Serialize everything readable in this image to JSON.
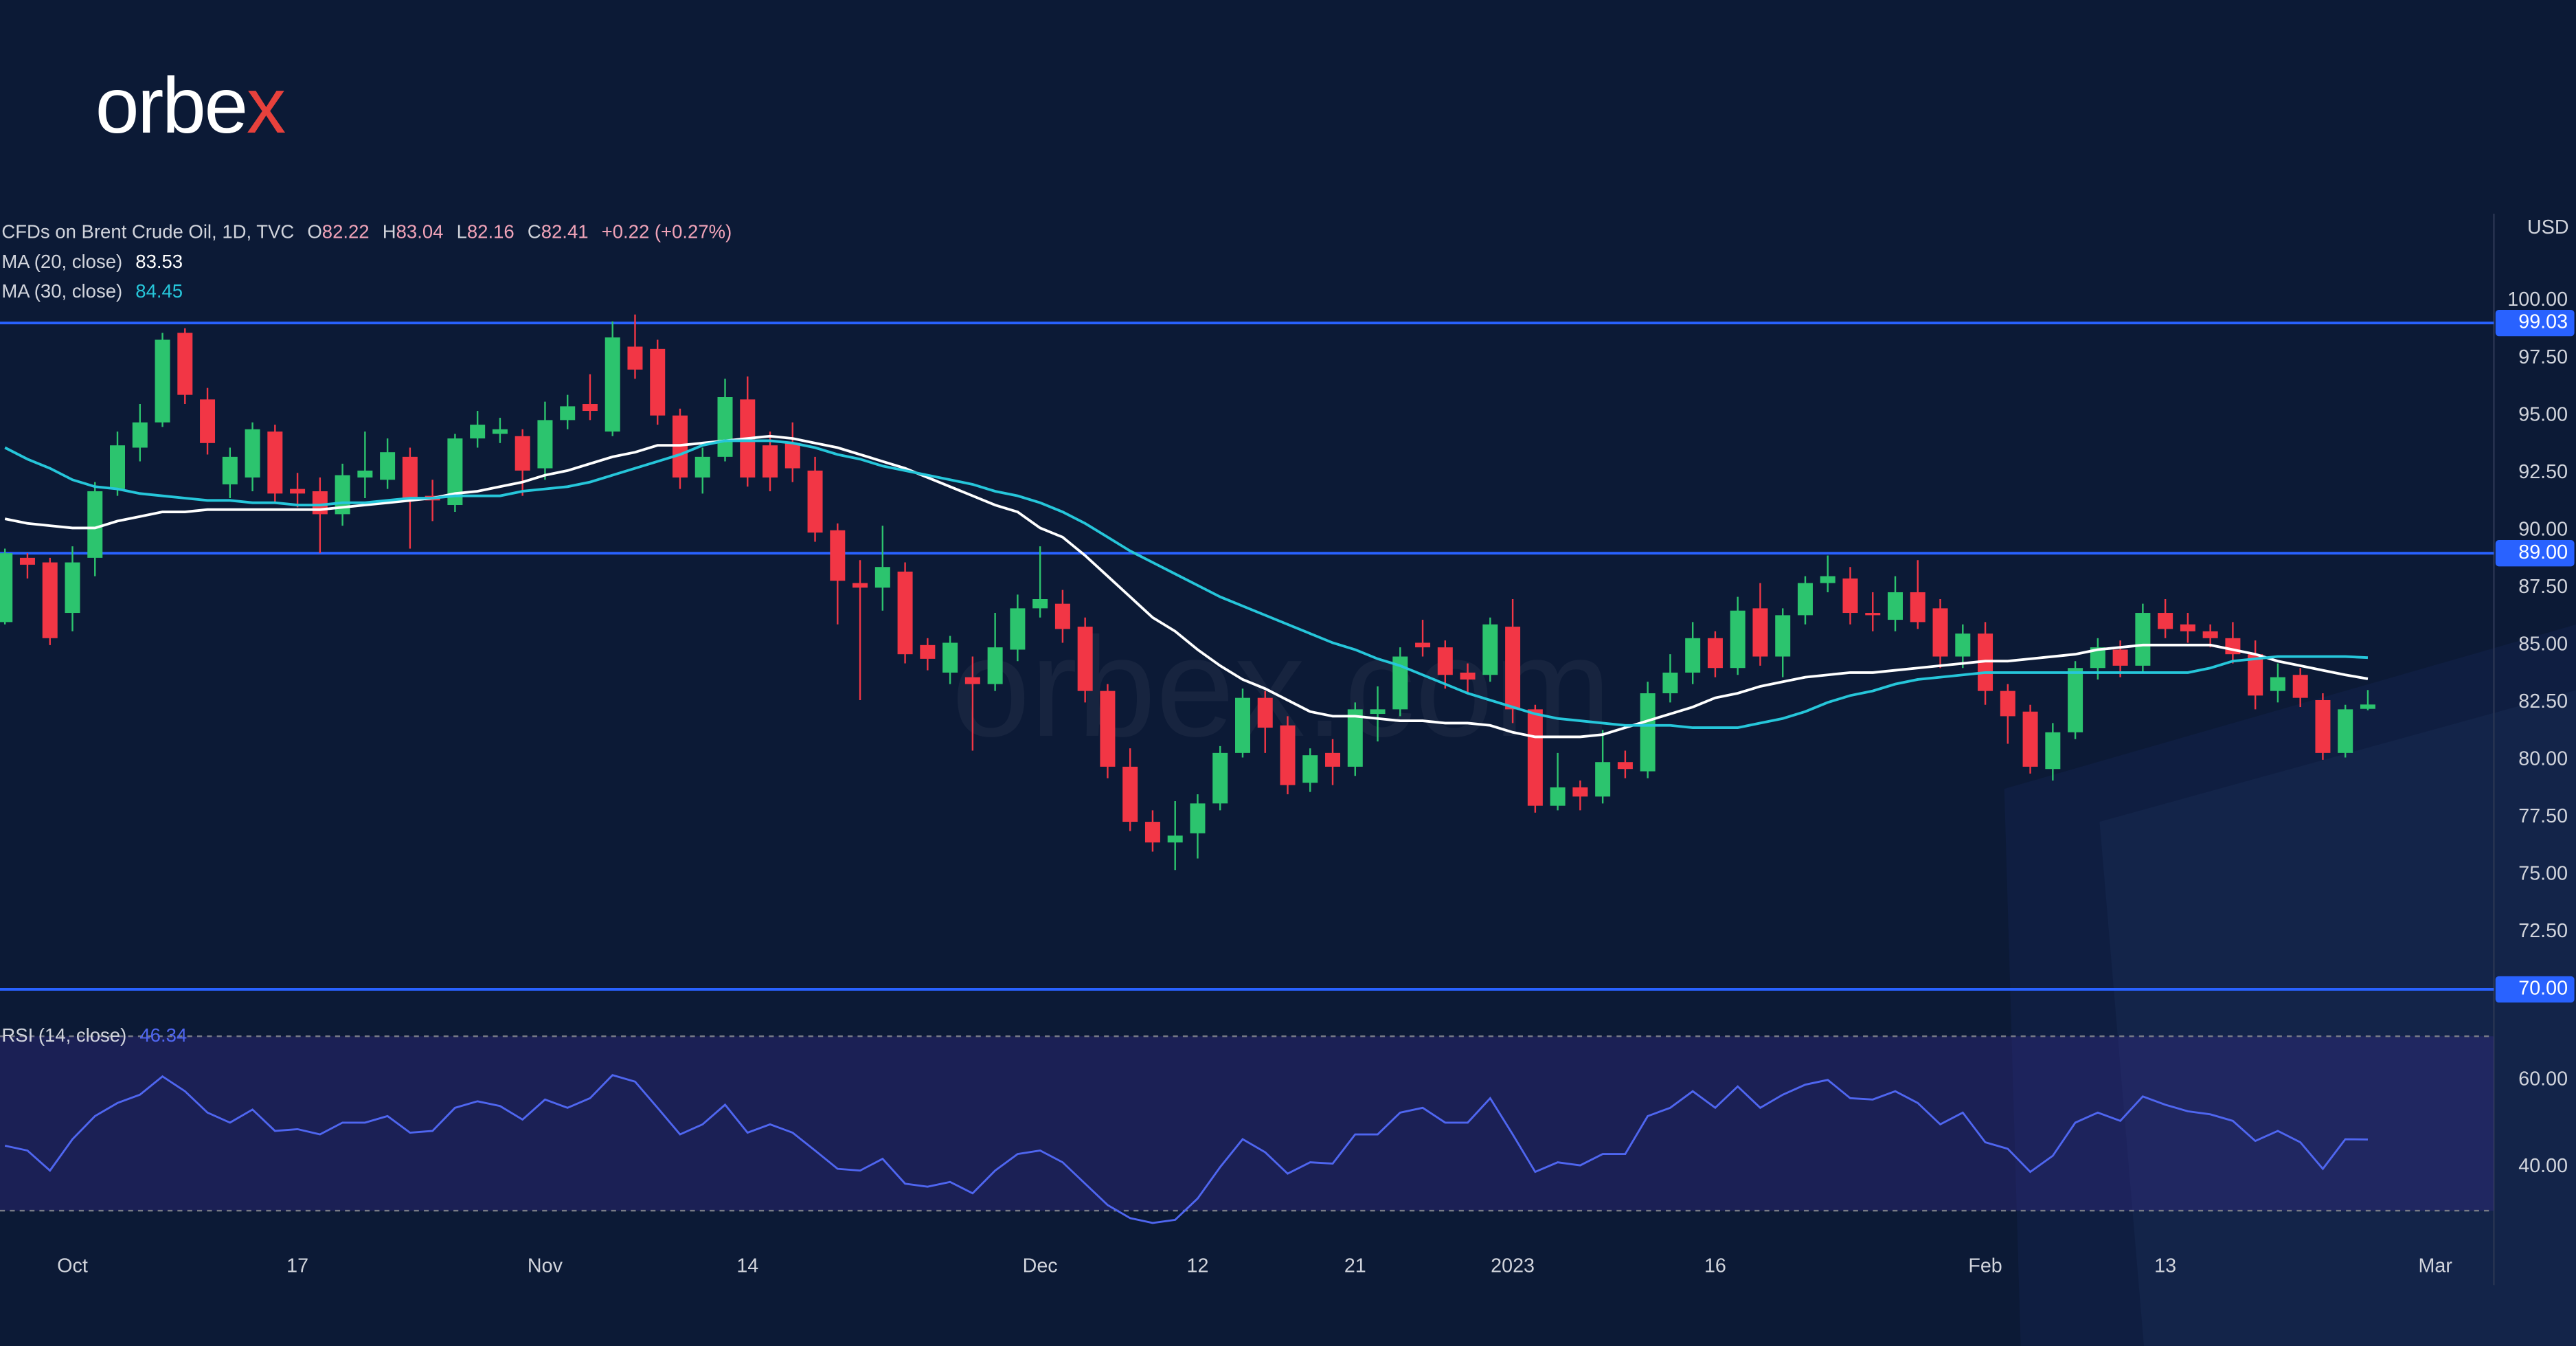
{
  "logo": {
    "main": "orbe",
    "accent": "x"
  },
  "chart_data": {
    "type": "candlestick",
    "title": "CFDs on Brent Crude Oil, 1D, TVC",
    "ohlc_labels": [
      "O",
      "H",
      "L",
      "C"
    ],
    "change": "+0.22 (+0.27%)",
    "currency": "USD",
    "watermark": "orbex.com",
    "up_color": "#2cc46e",
    "down_color": "#f23645",
    "open": [
      86.0,
      88.8,
      88.6,
      86.4,
      88.8,
      91.8,
      93.6,
      94.7,
      98.6,
      95.7,
      92.0,
      92.3,
      94.3,
      91.8,
      91.7,
      90.7,
      92.3,
      92.2,
      93.2,
      91.5,
      91.1,
      94.0,
      94.2,
      94.1,
      92.7,
      94.8,
      95.5,
      94.3,
      98.0,
      97.9,
      95.0,
      92.3,
      93.2,
      95.7,
      93.7,
      93.8,
      92.6,
      90.0,
      87.7,
      87.5,
      88.2,
      85.0,
      83.8,
      83.6,
      83.3,
      84.8,
      86.6,
      86.8,
      85.8,
      83.0,
      79.7,
      77.3,
      76.4,
      76.8,
      78.1,
      80.3,
      82.7,
      81.5,
      79.0,
      80.3,
      79.7,
      82.0,
      82.2,
      85.1,
      84.9,
      83.8,
      83.7,
      85.8,
      82.2,
      78.0,
      78.8,
      78.4,
      79.9,
      79.5,
      82.9,
      83.8,
      85.3,
      84.0,
      86.6,
      84.5,
      86.3,
      87.7,
      87.9,
      86.4,
      86.1,
      87.3,
      86.6,
      84.5,
      85.5,
      83.0,
      82.1,
      79.6,
      81.2,
      84.0,
      84.8,
      84.1,
      86.4,
      85.9,
      85.6,
      85.3,
      84.6,
      83.0,
      83.7,
      82.6,
      80.3,
      82.22
    ],
    "high": [
      89.2,
      89.0,
      88.8,
      89.3,
      92.1,
      94.3,
      95.5,
      98.6,
      98.8,
      96.2,
      93.6,
      94.7,
      94.6,
      92.5,
      92.3,
      92.9,
      94.3,
      94.0,
      93.6,
      92.2,
      94.2,
      95.2,
      94.9,
      94.4,
      95.6,
      95.9,
      96.8,
      99.1,
      99.4,
      98.3,
      95.3,
      93.6,
      96.6,
      96.7,
      94.3,
      94.7,
      93.2,
      90.3,
      88.7,
      90.2,
      88.6,
      85.3,
      85.4,
      84.5,
      86.4,
      87.2,
      89.3,
      87.4,
      86.2,
      83.3,
      80.5,
      77.8,
      78.2,
      78.5,
      80.6,
      83.1,
      83.0,
      81.9,
      80.5,
      80.9,
      82.5,
      83.2,
      84.9,
      86.1,
      85.2,
      84.2,
      86.2,
      87.0,
      82.4,
      80.3,
      79.1,
      81.3,
      80.4,
      83.4,
      84.6,
      86.0,
      85.6,
      87.1,
      87.7,
      86.6,
      88.0,
      88.9,
      88.4,
      87.3,
      88.0,
      88.7,
      87.0,
      85.9,
      86.0,
      83.3,
      82.4,
      81.6,
      84.3,
      85.3,
      85.2,
      86.8,
      87.0,
      86.4,
      85.9,
      86.0,
      85.2,
      84.2,
      84.0,
      82.9,
      82.4,
      83.04
    ],
    "low": [
      85.9,
      87.9,
      85.0,
      85.6,
      88.0,
      91.5,
      93.0,
      94.5,
      95.5,
      93.3,
      91.4,
      91.7,
      91.2,
      91.0,
      89.0,
      90.2,
      91.4,
      91.8,
      89.2,
      90.4,
      90.8,
      93.6,
      93.8,
      91.5,
      92.2,
      94.4,
      94.8,
      94.1,
      96.6,
      94.6,
      91.8,
      91.6,
      93.0,
      91.9,
      91.7,
      92.1,
      89.5,
      85.9,
      82.6,
      86.5,
      84.2,
      83.9,
      83.3,
      80.4,
      83.0,
      84.3,
      86.2,
      85.1,
      82.5,
      79.2,
      76.9,
      76.0,
      75.2,
      75.7,
      77.8,
      80.1,
      80.3,
      78.5,
      78.6,
      78.9,
      79.3,
      80.8,
      81.9,
      84.5,
      83.1,
      82.9,
      83.4,
      81.6,
      77.7,
      77.8,
      77.8,
      78.1,
      79.2,
      79.2,
      82.5,
      83.3,
      83.6,
      83.7,
      84.1,
      83.6,
      85.9,
      87.3,
      85.9,
      85.6,
      85.6,
      85.7,
      84.0,
      84.0,
      82.4,
      80.7,
      79.4,
      79.1,
      80.9,
      83.5,
      83.6,
      83.8,
      85.3,
      85.1,
      84.9,
      84.2,
      82.2,
      82.5,
      82.3,
      80.0,
      80.1,
      82.16
    ],
    "close": [
      89.0,
      88.5,
      85.3,
      88.6,
      91.7,
      93.7,
      94.7,
      98.3,
      95.9,
      93.8,
      93.2,
      94.4,
      91.6,
      91.6,
      90.7,
      92.4,
      92.6,
      93.4,
      91.3,
      91.3,
      94.0,
      94.6,
      94.4,
      92.6,
      94.8,
      95.4,
      95.2,
      98.4,
      97.0,
      95.0,
      92.3,
      93.2,
      95.8,
      92.3,
      92.3,
      92.7,
      89.9,
      87.8,
      87.5,
      88.4,
      84.6,
      84.4,
      85.1,
      83.3,
      84.9,
      86.6,
      87.0,
      85.7,
      83.0,
      79.7,
      77.3,
      76.4,
      76.7,
      78.1,
      80.3,
      82.7,
      81.4,
      78.9,
      80.2,
      79.7,
      82.2,
      82.2,
      84.5,
      84.9,
      83.7,
      83.5,
      85.9,
      82.2,
      78.0,
      78.8,
      78.4,
      79.9,
      79.6,
      82.9,
      83.8,
      85.3,
      84.0,
      86.5,
      84.5,
      86.3,
      87.7,
      88.0,
      86.4,
      86.3,
      87.3,
      86.0,
      84.5,
      85.5,
      83.0,
      81.9,
      79.7,
      81.2,
      84.0,
      84.9,
      84.1,
      86.4,
      85.7,
      85.6,
      85.3,
      84.6,
      82.8,
      83.6,
      82.7,
      80.3,
      82.2,
      82.41
    ],
    "series": [
      {
        "name": "MA (20, close)",
        "color": "#ffffff",
        "values": [
          90.5,
          90.3,
          90.2,
          90.1,
          90.1,
          90.4,
          90.6,
          90.8,
          90.8,
          90.9,
          90.9,
          90.9,
          90.9,
          90.9,
          90.9,
          91.0,
          91.1,
          91.2,
          91.3,
          91.4,
          91.6,
          91.7,
          91.9,
          92.1,
          92.4,
          92.6,
          92.9,
          93.2,
          93.4,
          93.7,
          93.7,
          93.8,
          93.9,
          94.0,
          94.1,
          94.0,
          93.8,
          93.6,
          93.3,
          93.0,
          92.7,
          92.3,
          91.9,
          91.5,
          91.1,
          90.8,
          90.1,
          89.7,
          88.9,
          88.0,
          87.1,
          86.2,
          85.6,
          84.8,
          84.1,
          83.5,
          83.1,
          82.6,
          82.1,
          81.9,
          81.9,
          81.8,
          81.7,
          81.7,
          81.6,
          81.6,
          81.5,
          81.2,
          81.0,
          81.0,
          81.0,
          81.1,
          81.4,
          81.7,
          82.0,
          82.3,
          82.7,
          82.9,
          83.2,
          83.4,
          83.6,
          83.7,
          83.8,
          83.8,
          83.9,
          84.0,
          84.1,
          84.2,
          84.3,
          84.3,
          84.4,
          84.5,
          84.6,
          84.8,
          84.9,
          85.0,
          85.0,
          85.0,
          85.0,
          84.8,
          84.6,
          84.3,
          84.1,
          83.9,
          83.7,
          83.53
        ]
      },
      {
        "name": "MA (30, close)",
        "color": "#26c6da",
        "values": [
          93.6,
          93.1,
          92.7,
          92.2,
          91.9,
          91.8,
          91.6,
          91.5,
          91.4,
          91.3,
          91.3,
          91.2,
          91.2,
          91.1,
          91.1,
          91.2,
          91.2,
          91.3,
          91.4,
          91.4,
          91.5,
          91.5,
          91.5,
          91.7,
          91.8,
          91.9,
          92.1,
          92.4,
          92.7,
          93.0,
          93.3,
          93.7,
          93.9,
          93.9,
          93.9,
          93.8,
          93.6,
          93.3,
          93.1,
          92.8,
          92.6,
          92.4,
          92.2,
          92.0,
          91.7,
          91.5,
          91.2,
          90.8,
          90.3,
          89.7,
          89.1,
          88.6,
          88.1,
          87.6,
          87.1,
          86.7,
          86.3,
          85.9,
          85.5,
          85.1,
          84.8,
          84.4,
          84.1,
          83.7,
          83.3,
          82.9,
          82.6,
          82.3,
          82.0,
          81.8,
          81.7,
          81.6,
          81.5,
          81.5,
          81.5,
          81.4,
          81.4,
          81.4,
          81.6,
          81.8,
          82.1,
          82.5,
          82.8,
          83.0,
          83.3,
          83.5,
          83.6,
          83.7,
          83.8,
          83.8,
          83.8,
          83.8,
          83.8,
          83.8,
          83.8,
          83.8,
          83.8,
          83.8,
          84.0,
          84.3,
          84.4,
          84.5,
          84.5,
          84.5,
          84.5,
          84.45
        ]
      }
    ],
    "hlines": {
      "color": "#2962ff",
      "levels": [
        {
          "value": 99.03,
          "label": "99.03"
        },
        {
          "value": 89,
          "label": "89.00"
        },
        {
          "value": 70,
          "label": "70.00"
        }
      ]
    },
    "xlim": [
      -0.22,
      110.6
    ],
    "xticks": [
      {
        "value": 3,
        "label": "Oct"
      },
      {
        "value": 13,
        "label": "17"
      },
      {
        "value": 24,
        "label": "Nov"
      },
      {
        "value": 33,
        "label": "14"
      },
      {
        "value": 46,
        "label": "Dec"
      },
      {
        "value": 53,
        "label": "12"
      },
      {
        "value": 60,
        "label": "21"
      },
      {
        "value": 67,
        "label": "2023"
      },
      {
        "value": 76,
        "label": "16"
      },
      {
        "value": 88,
        "label": "Feb"
      },
      {
        "value": 96,
        "label": "13"
      },
      {
        "value": 108,
        "label": "Mar"
      }
    ],
    "ylim": [
      69.43,
      103.79
    ],
    "yticks": [
      {
        "value": 100,
        "label": "100.00"
      },
      {
        "value": 97.5,
        "label": "97.50"
      },
      {
        "value": 95,
        "label": "95.00"
      },
      {
        "value": 92.5,
        "label": "92.50"
      },
      {
        "value": 90,
        "label": "90.00"
      },
      {
        "value": 87.5,
        "label": "87.50"
      },
      {
        "value": 85,
        "label": "85.00"
      },
      {
        "value": 82.5,
        "label": "82.50"
      },
      {
        "value": 80,
        "label": "80.00"
      },
      {
        "value": 77.5,
        "label": "77.50"
      },
      {
        "value": 75,
        "label": "75.00"
      },
      {
        "value": 72.5,
        "label": "72.50"
      }
    ],
    "rsi": {
      "name": "RSI (14, close)",
      "color": "#4f66f0",
      "band_color": "#3a2f8f",
      "ylim": [
        25,
        77
      ],
      "bands": [
        30,
        70
      ],
      "yticks": [
        {
          "value": 60,
          "label": "60.00"
        },
        {
          "value": 40,
          "label": "40.00"
        }
      ],
      "values": [
        44.9,
        43.8,
        39.2,
        46.4,
        51.7,
        54.7,
        56.6,
        60.8,
        57.4,
        52.5,
        50.2,
        53.2,
        48.3,
        48.7,
        47.5,
        50.2,
        50.2,
        51.7,
        47.9,
        48.3,
        53.6,
        55.1,
        54.0,
        50.9,
        55.5,
        53.6,
        55.8,
        61.1,
        59.6,
        53.6,
        47.5,
        49.8,
        54.3,
        47.9,
        49.8,
        47.9,
        43.8,
        39.6,
        39.2,
        41.9,
        36.2,
        35.5,
        36.6,
        34.0,
        39.2,
        43.0,
        43.8,
        41.1,
        36.2,
        31.3,
        28.3,
        27.2,
        27.9,
        32.8,
        40.0,
        46.4,
        43.4,
        38.5,
        41.1,
        40.8,
        47.5,
        47.5,
        52.5,
        53.6,
        50.2,
        50.2,
        55.8,
        47.5,
        38.9,
        41.1,
        40.4,
        43.0,
        43.0,
        51.7,
        53.6,
        57.4,
        53.6,
        58.5,
        53.6,
        56.6,
        58.9,
        60.0,
        55.8,
        55.5,
        57.4,
        54.7,
        49.8,
        52.5,
        45.7,
        44.2,
        38.9,
        42.6,
        50.2,
        52.5,
        50.6,
        56.2,
        54.3,
        52.8,
        52.1,
        50.6,
        46.0,
        48.3,
        45.7,
        39.6,
        46.4,
        46.34
      ]
    }
  }
}
